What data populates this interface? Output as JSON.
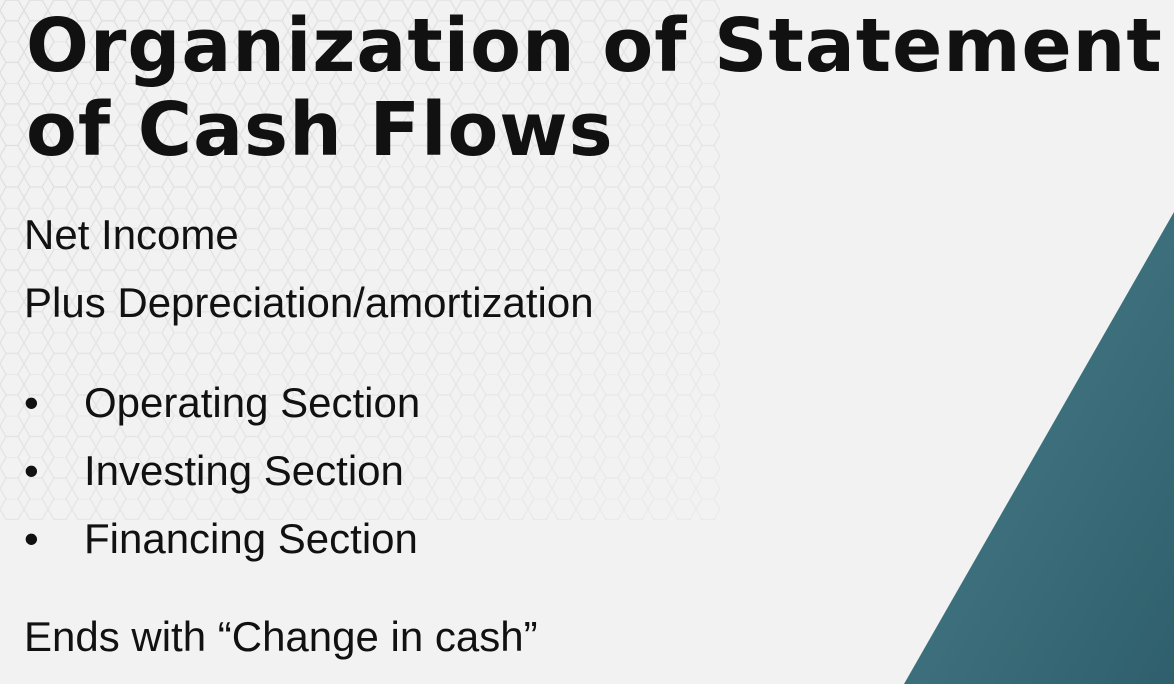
{
  "slide": {
    "title_line1": "Organization of Statement",
    "title_line2": "of Cash Flows",
    "lines": [
      "Net Income",
      "Plus Depreciation/amortization"
    ],
    "bullets": [
      "Operating Section",
      "Investing Section",
      "Financing Section"
    ],
    "bullet_glyph": "•",
    "closing": "Ends with “Change in cash”"
  },
  "colors": {
    "accent": "#3f6f7c",
    "text": "#111111",
    "background": "#f2f2f2"
  }
}
